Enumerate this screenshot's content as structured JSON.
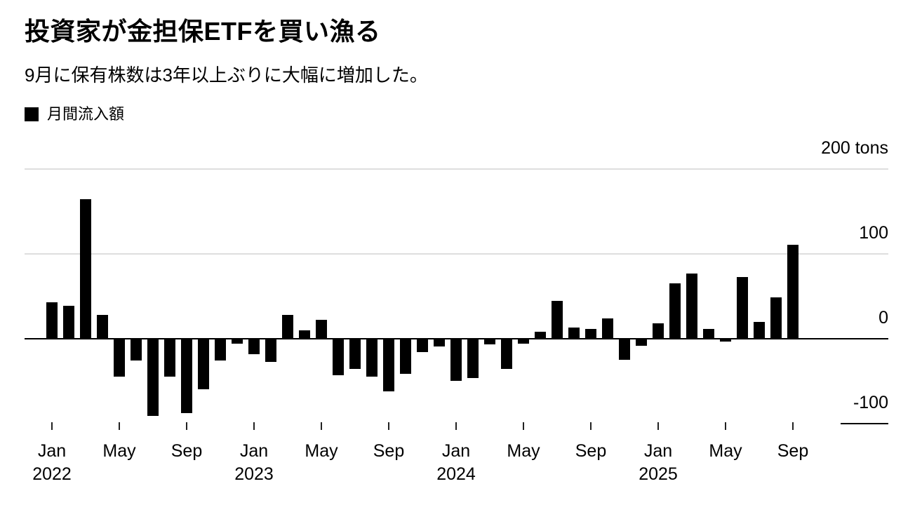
{
  "header": {
    "title": "投資家が金担保ETFを買い漁る",
    "subtitle": "9月に保有株数は3年以上ぶりに大幅に増加した。"
  },
  "legend": {
    "swatch_color": "#000000",
    "label": "月間流入額"
  },
  "chart_data": {
    "type": "bar",
    "title": "投資家が金担保ETFを買い漁る",
    "subtitle": "9月に保有株数は3年以上ぶりに大幅に増加した。",
    "unit": "tons",
    "bar_color": "#000000",
    "grid_color": "#dedede",
    "ylim": [
      -100,
      200
    ],
    "legend_position": "top-left",
    "yticks": [
      {
        "value": 200,
        "label": "200 tons",
        "line": "light-full"
      },
      {
        "value": 100,
        "label": "100",
        "line": "light-full"
      },
      {
        "value": 0,
        "label": "0",
        "line": "dark-full"
      },
      {
        "value": -100,
        "label": "-100",
        "line": "dark-short"
      }
    ],
    "xticks": [
      {
        "index": 0,
        "label": "Jan",
        "year": "2022"
      },
      {
        "index": 4,
        "label": "May"
      },
      {
        "index": 8,
        "label": "Sep"
      },
      {
        "index": 12,
        "label": "Jan",
        "year": "2023"
      },
      {
        "index": 16,
        "label": "May"
      },
      {
        "index": 20,
        "label": "Sep"
      },
      {
        "index": 24,
        "label": "Jan",
        "year": "2024"
      },
      {
        "index": 28,
        "label": "May"
      },
      {
        "index": 32,
        "label": "Sep"
      },
      {
        "index": 36,
        "label": "Jan",
        "year": "2025"
      },
      {
        "index": 40,
        "label": "May"
      },
      {
        "index": 44,
        "label": "Sep"
      }
    ],
    "series": [
      {
        "name": "月間流入額",
        "points": [
          {
            "month": "2022-01",
            "value": 43
          },
          {
            "month": "2022-02",
            "value": 39
          },
          {
            "month": "2022-03",
            "value": 165
          },
          {
            "month": "2022-04",
            "value": 28
          },
          {
            "month": "2022-05",
            "value": -45
          },
          {
            "month": "2022-06",
            "value": -26
          },
          {
            "month": "2022-07",
            "value": -91
          },
          {
            "month": "2022-08",
            "value": -45
          },
          {
            "month": "2022-09",
            "value": -88
          },
          {
            "month": "2022-10",
            "value": -60
          },
          {
            "month": "2022-11",
            "value": -26
          },
          {
            "month": "2022-12",
            "value": -6
          },
          {
            "month": "2023-01",
            "value": -18
          },
          {
            "month": "2023-02",
            "value": -27
          },
          {
            "month": "2023-03",
            "value": 28
          },
          {
            "month": "2023-04",
            "value": 10
          },
          {
            "month": "2023-05",
            "value": 22
          },
          {
            "month": "2023-06",
            "value": -43
          },
          {
            "month": "2023-07",
            "value": -36
          },
          {
            "month": "2023-08",
            "value": -45
          },
          {
            "month": "2023-09",
            "value": -62
          },
          {
            "month": "2023-10",
            "value": -41
          },
          {
            "month": "2023-11",
            "value": -16
          },
          {
            "month": "2023-12",
            "value": -9
          },
          {
            "month": "2024-01",
            "value": -50
          },
          {
            "month": "2024-02",
            "value": -46
          },
          {
            "month": "2024-03",
            "value": -7
          },
          {
            "month": "2024-04",
            "value": -36
          },
          {
            "month": "2024-05",
            "value": -6
          },
          {
            "month": "2024-06",
            "value": 8
          },
          {
            "month": "2024-07",
            "value": 45
          },
          {
            "month": "2024-08",
            "value": 13
          },
          {
            "month": "2024-09",
            "value": 12
          },
          {
            "month": "2024-10",
            "value": 24
          },
          {
            "month": "2024-11",
            "value": -25
          },
          {
            "month": "2024-12",
            "value": -8
          },
          {
            "month": "2025-01",
            "value": 18
          },
          {
            "month": "2025-02",
            "value": 65
          },
          {
            "month": "2025-03",
            "value": 77
          },
          {
            "month": "2025-04",
            "value": 12
          },
          {
            "month": "2025-05",
            "value": -3
          },
          {
            "month": "2025-06",
            "value": 73
          },
          {
            "month": "2025-07",
            "value": 20
          },
          {
            "month": "2025-08",
            "value": 49
          },
          {
            "month": "2025-09",
            "value": 111
          }
        ]
      }
    ]
  }
}
